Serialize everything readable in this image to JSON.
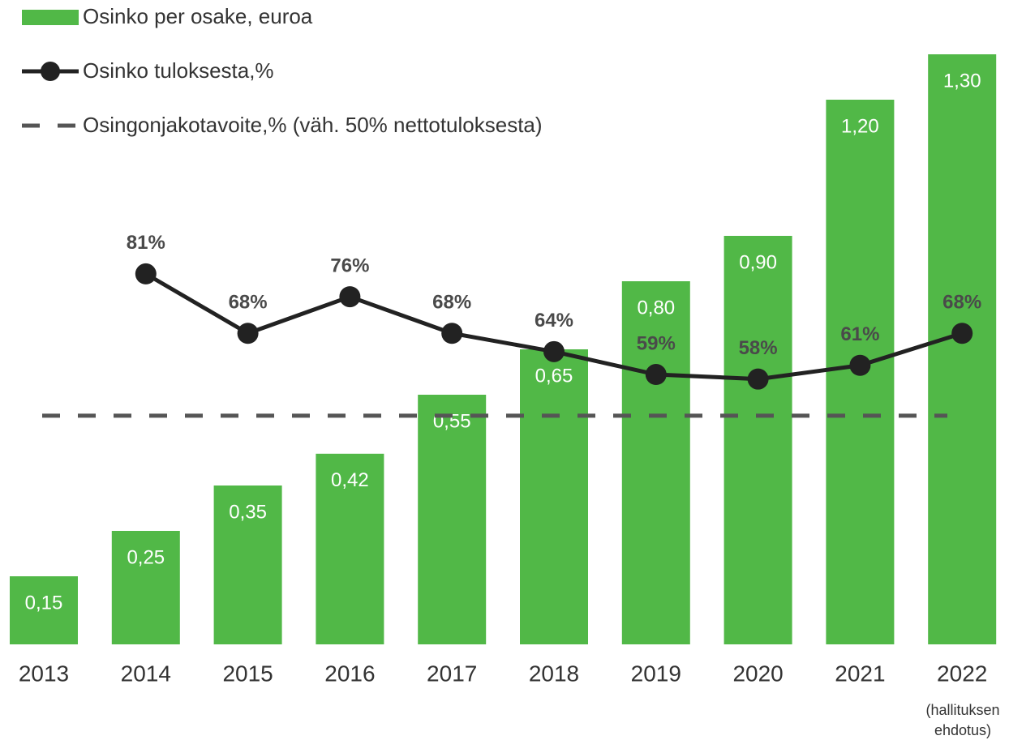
{
  "chart_data": {
    "type": "bar",
    "categories": [
      "2013",
      "2014",
      "2015",
      "2016",
      "2017",
      "2018",
      "2019",
      "2020",
      "2021",
      "2022"
    ],
    "series": [
      {
        "name": "Osinko per osake, euroa",
        "type": "bar",
        "color": "#51b847",
        "values": [
          0.15,
          0.25,
          0.35,
          0.42,
          0.55,
          0.65,
          0.8,
          0.9,
          1.2,
          1.3
        ],
        "value_labels": [
          "0,15",
          "0,25",
          "0,35",
          "0,42",
          "0,55",
          "0,65",
          "0,80",
          "0,90",
          "1,20",
          "1,30"
        ]
      },
      {
        "name": "Osinko tuloksesta,%",
        "type": "line",
        "axis": "y2",
        "color": "#222222",
        "values": [
          null,
          81,
          68,
          76,
          68,
          64,
          59,
          58,
          61,
          68
        ],
        "value_labels": [
          null,
          "81%",
          "68%",
          "76%",
          "68%",
          "64%",
          "59%",
          "58%",
          "61%",
          "68%"
        ]
      }
    ],
    "reference_line": {
      "name": "Osingonjakotavoite,% (väh. 50% nettotuloksesta)",
      "axis": "y2",
      "value": 50,
      "color": "#555555"
    },
    "ylim": [
      0,
      1.3
    ],
    "y2lim": [
      0,
      129
    ],
    "annotation": [
      "(hallituksen",
      "ehdotus)"
    ]
  }
}
